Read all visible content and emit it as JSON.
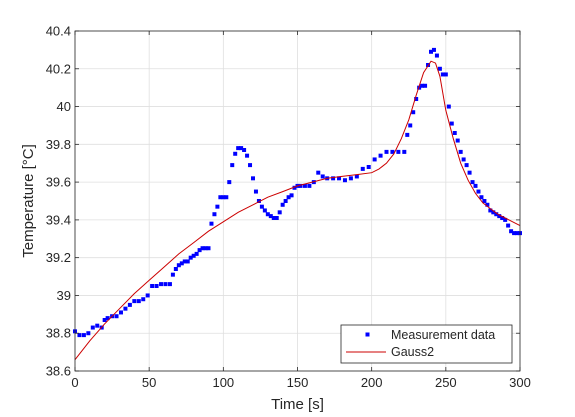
{
  "chart_data": {
    "type": "scatter",
    "title": "",
    "xlabel": "Time [s]",
    "ylabel": "Temperature [°C]",
    "xlim": [
      0,
      300
    ],
    "ylim": [
      38.6,
      40.4
    ],
    "xticks": [
      "0",
      "50",
      "100",
      "150",
      "200",
      "250",
      "300"
    ],
    "yticks": [
      "38.6",
      "38.8",
      "39",
      "39.2",
      "39.4",
      "39.6",
      "39.8",
      "40",
      "40.2",
      "40.4"
    ],
    "grid": true,
    "legend_position": "bottom-right",
    "series": [
      {
        "name": "Measurement data",
        "style": "markers",
        "color": "#0000ff",
        "x": [
          0,
          3,
          6,
          9,
          12,
          15,
          18,
          20,
          22,
          25,
          28,
          31,
          34,
          37,
          40,
          43,
          46,
          49,
          52,
          55,
          58,
          61,
          64,
          66,
          68,
          70,
          72,
          74,
          76,
          78,
          80,
          82,
          84,
          86,
          88,
          90,
          92,
          94,
          96,
          98,
          100,
          102,
          104,
          106,
          108,
          110,
          112,
          114,
          116,
          118,
          120,
          122,
          124,
          126,
          128,
          130,
          132,
          134,
          136,
          138,
          140,
          142,
          144,
          146,
          148,
          150,
          152,
          155,
          158,
          161,
          164,
          167,
          170,
          174,
          178,
          182,
          186,
          190,
          194,
          198,
          202,
          206,
          210,
          214,
          218,
          222,
          224,
          226,
          228,
          230,
          232,
          234,
          236,
          238,
          240,
          242,
          244,
          246,
          248,
          250,
          252,
          254,
          256,
          258,
          260,
          262,
          264,
          266,
          268,
          270,
          272,
          274,
          276,
          278,
          280,
          282,
          284,
          286,
          288,
          290,
          292,
          294,
          296,
          298,
          300
        ],
        "y": [
          38.81,
          38.79,
          38.79,
          38.8,
          38.83,
          38.84,
          38.83,
          38.87,
          38.88,
          38.89,
          38.89,
          38.91,
          38.93,
          38.95,
          38.97,
          38.97,
          38.98,
          39.0,
          39.05,
          39.05,
          39.06,
          39.06,
          39.06,
          39.11,
          39.14,
          39.16,
          39.17,
          39.18,
          39.18,
          39.2,
          39.21,
          39.22,
          39.24,
          39.25,
          39.25,
          39.25,
          39.38,
          39.43,
          39.47,
          39.52,
          39.52,
          39.52,
          39.6,
          39.69,
          39.75,
          39.78,
          39.78,
          39.77,
          39.74,
          39.69,
          39.62,
          39.55,
          39.5,
          39.47,
          39.45,
          39.43,
          39.42,
          39.41,
          39.41,
          39.44,
          39.48,
          39.5,
          39.52,
          39.53,
          39.57,
          39.58,
          39.58,
          39.58,
          39.58,
          39.6,
          39.65,
          39.63,
          39.62,
          39.62,
          39.62,
          39.61,
          39.62,
          39.63,
          39.67,
          39.68,
          39.72,
          39.74,
          39.76,
          39.76,
          39.76,
          39.76,
          39.85,
          39.9,
          39.97,
          40.04,
          40.1,
          40.11,
          40.11,
          40.22,
          40.29,
          40.3,
          40.27,
          40.2,
          40.17,
          40.17,
          40.0,
          39.91,
          39.86,
          39.82,
          39.76,
          39.72,
          39.69,
          39.65,
          39.6,
          39.58,
          39.55,
          39.52,
          39.5,
          39.48,
          39.45,
          39.44,
          39.43,
          39.42,
          39.41,
          39.4,
          39.37,
          39.34,
          39.33,
          39.33,
          39.33
        ]
      },
      {
        "name": "Gauss2",
        "style": "line",
        "color": "#cc0000",
        "x": [
          0,
          10,
          20,
          30,
          40,
          50,
          60,
          70,
          80,
          90,
          100,
          110,
          120,
          130,
          140,
          150,
          160,
          170,
          180,
          190,
          200,
          205,
          210,
          215,
          220,
          225,
          230,
          235,
          240,
          243,
          246,
          250,
          255,
          260,
          265,
          270,
          275,
          280,
          285,
          290,
          295,
          300
        ],
        "y": [
          38.66,
          38.76,
          38.85,
          38.93,
          39.01,
          39.08,
          39.15,
          39.22,
          39.28,
          39.34,
          39.39,
          39.44,
          39.48,
          39.52,
          39.55,
          39.58,
          39.6,
          39.62,
          39.63,
          39.64,
          39.65,
          39.67,
          39.7,
          39.75,
          39.83,
          39.93,
          40.06,
          40.18,
          40.24,
          40.23,
          40.16,
          39.98,
          39.83,
          39.7,
          39.61,
          39.54,
          39.49,
          39.46,
          39.43,
          39.41,
          39.39,
          39.37
        ]
      }
    ]
  }
}
